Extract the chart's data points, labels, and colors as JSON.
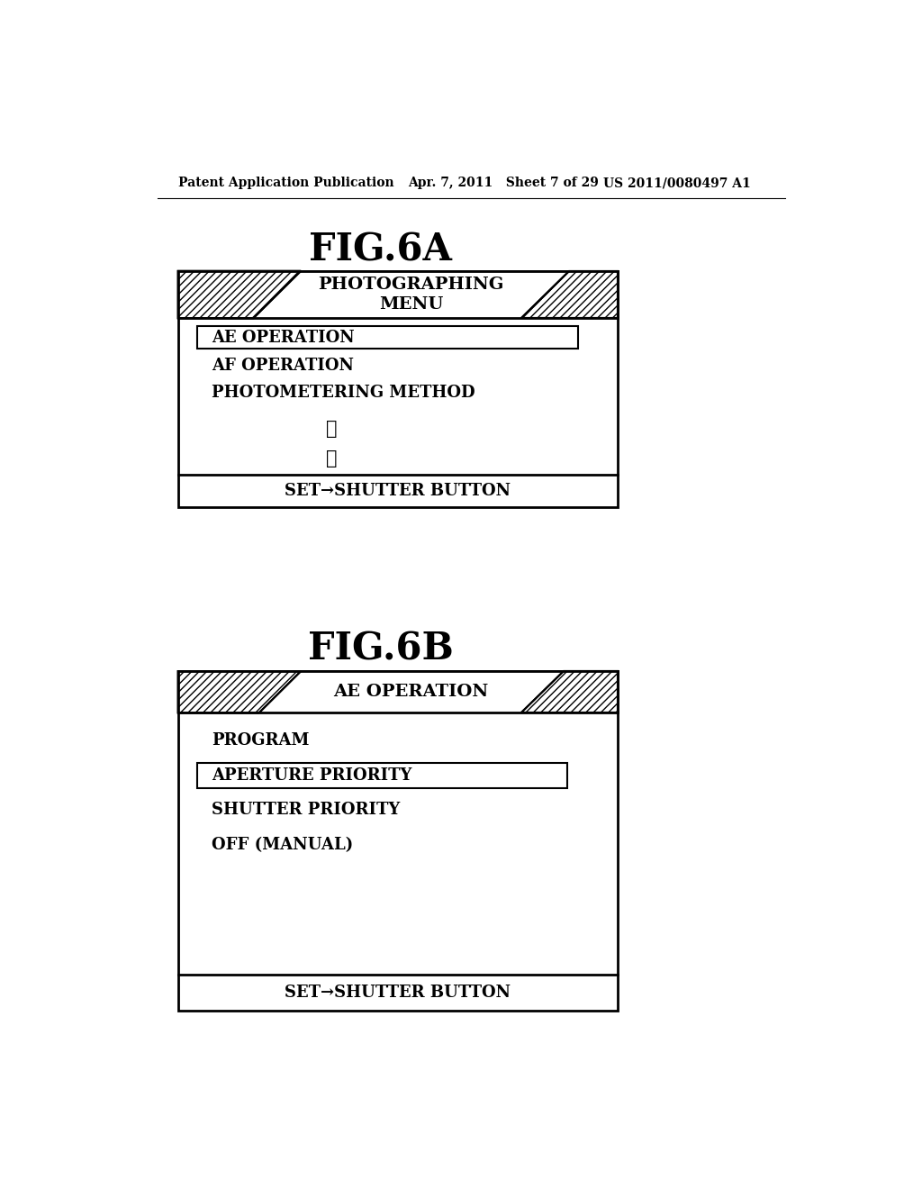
{
  "bg_color": "#ffffff",
  "header_left": "Patent Application Publication",
  "header_mid": "Apr. 7, 2011   Sheet 7 of 29",
  "header_right": "US 2011/0080497 A1",
  "fig6a_title": "FIG.6A",
  "fig6b_title": "FIG.6B",
  "fig6a": {
    "tab_label": "PHOTOGRAPHING\nMENU",
    "items": [
      "AE OPERATION",
      "AF OPERATION",
      "PHOTOMETERING METHOD"
    ],
    "footer": "SET→SHUTTER BUTTON",
    "selected_item": "AE OPERATION"
  },
  "fig6b": {
    "tab_label": "AE OPERATION",
    "items": [
      "PROGRAM",
      "APERTURE PRIORITY",
      "SHUTTER PRIORITY",
      "OFF (MANUAL)"
    ],
    "footer": "SET→SHUTTER BUTTON",
    "selected_item": "APERTURE PRIORITY"
  }
}
